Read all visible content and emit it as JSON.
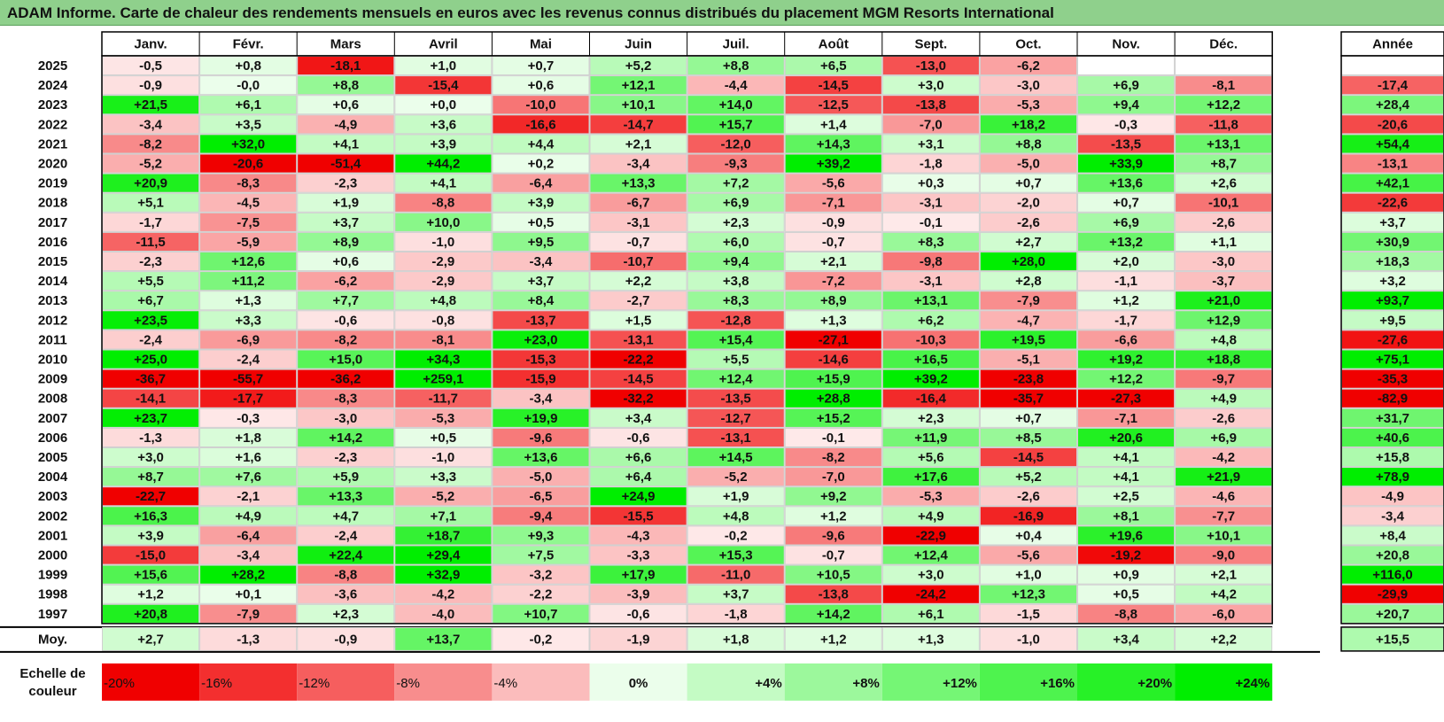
{
  "title": "ADAM Informe. Carte de chaleur des rendements mensuels en euros avec les revenus connus distribués du placement MGM Resorts International",
  "chart_data": {
    "type": "heatmap",
    "title": "ADAM Informe. Carte de chaleur des rendements mensuels en euros avec les revenus connus distribués du placement MGM Resorts International",
    "months": [
      "Janv.",
      "Févr.",
      "Mars",
      "Avril",
      "Mai",
      "Juin",
      "Juil.",
      "Août",
      "Sept.",
      "Oct.",
      "Nov.",
      "Déc."
    ],
    "year_column_label": "Année",
    "average_row_label": "Moy.",
    "rows": [
      {
        "year": "2025",
        "values": [
          "-0,5",
          "+0,8",
          "-18,1",
          "+1,0",
          "+0,7",
          "+5,2",
          "+8,8",
          "+6,5",
          "-13,0",
          "-6,2",
          "",
          ""
        ],
        "annual": ""
      },
      {
        "year": "2024",
        "values": [
          "-0,9",
          "-0,0",
          "+8,8",
          "-15,4",
          "+0,6",
          "+12,1",
          "-4,4",
          "-14,5",
          "+3,0",
          "-3,0",
          "+6,9",
          "-8,1"
        ],
        "annual": "-17,4"
      },
      {
        "year": "2023",
        "values": [
          "+21,5",
          "+6,1",
          "+0,6",
          "+0,0",
          "-10,0",
          "+10,1",
          "+14,0",
          "-12,5",
          "-13,8",
          "-5,3",
          "+9,4",
          "+12,2"
        ],
        "annual": "+28,4"
      },
      {
        "year": "2022",
        "values": [
          "-3,4",
          "+3,5",
          "-4,9",
          "+3,6",
          "-16,6",
          "-14,7",
          "+15,7",
          "+1,4",
          "-7,0",
          "+18,2",
          "-0,3",
          "-11,8"
        ],
        "annual": "-20,6"
      },
      {
        "year": "2021",
        "values": [
          "-8,2",
          "+32,0",
          "+4,1",
          "+3,9",
          "+4,4",
          "+2,1",
          "-12,0",
          "+14,3",
          "+3,1",
          "+8,8",
          "-13,5",
          "+13,1"
        ],
        "annual": "+54,4"
      },
      {
        "year": "2020",
        "values": [
          "-5,2",
          "-20,6",
          "-51,4",
          "+44,2",
          "+0,2",
          "-3,4",
          "-9,3",
          "+39,2",
          "-1,8",
          "-5,0",
          "+33,9",
          "+8,7"
        ],
        "annual": "-13,1"
      },
      {
        "year": "2019",
        "values": [
          "+20,9",
          "-8,3",
          "-2,3",
          "+4,1",
          "-6,4",
          "+13,3",
          "+7,2",
          "-5,6",
          "+0,3",
          "+0,7",
          "+13,6",
          "+2,6"
        ],
        "annual": "+42,1"
      },
      {
        "year": "2018",
        "values": [
          "+5,1",
          "-4,5",
          "+1,9",
          "-8,8",
          "+3,9",
          "-6,7",
          "+6,9",
          "-7,1",
          "-3,1",
          "-2,0",
          "+0,7",
          "-10,1"
        ],
        "annual": "-22,6"
      },
      {
        "year": "2017",
        "values": [
          "-1,7",
          "-7,5",
          "+3,7",
          "+10,0",
          "+0,5",
          "-3,1",
          "+2,3",
          "-0,9",
          "-0,1",
          "-2,6",
          "+6,9",
          "-2,6"
        ],
        "annual": "+3,7"
      },
      {
        "year": "2016",
        "values": [
          "-11,5",
          "-5,9",
          "+8,9",
          "-1,0",
          "+9,5",
          "-0,7",
          "+6,0",
          "-0,7",
          "+8,3",
          "+2,7",
          "+13,2",
          "+1,1"
        ],
        "annual": "+30,9"
      },
      {
        "year": "2015",
        "values": [
          "-2,3",
          "+12,6",
          "+0,6",
          "-2,9",
          "-3,4",
          "-10,7",
          "+9,4",
          "+2,1",
          "-9,8",
          "+28,0",
          "+2,0",
          "-3,0"
        ],
        "annual": "+18,3"
      },
      {
        "year": "2014",
        "values": [
          "+5,5",
          "+11,2",
          "-6,2",
          "-2,9",
          "+3,7",
          "+2,2",
          "+3,8",
          "-7,2",
          "-3,1",
          "+2,8",
          "-1,1",
          "-3,7"
        ],
        "annual": "+3,2"
      },
      {
        "year": "2013",
        "values": [
          "+6,7",
          "+1,3",
          "+7,7",
          "+4,8",
          "+8,4",
          "-2,7",
          "+8,3",
          "+8,9",
          "+13,1",
          "-7,9",
          "+1,2",
          "+21,0"
        ],
        "annual": "+93,7"
      },
      {
        "year": "2012",
        "values": [
          "+23,5",
          "+3,3",
          "-0,6",
          "-0,8",
          "-13,7",
          "+1,5",
          "-12,8",
          "+1,3",
          "+6,2",
          "-4,7",
          "-1,7",
          "+12,9"
        ],
        "annual": "+9,5"
      },
      {
        "year": "2011",
        "values": [
          "-2,4",
          "-6,9",
          "-8,2",
          "-8,1",
          "+23,0",
          "-13,1",
          "+15,4",
          "-27,1",
          "-10,3",
          "+19,5",
          "-6,6",
          "+4,8"
        ],
        "annual": "-27,6"
      },
      {
        "year": "2010",
        "values": [
          "+25,0",
          "-2,4",
          "+15,0",
          "+34,3",
          "-15,3",
          "-22,2",
          "+5,5",
          "-14,6",
          "+16,5",
          "-5,1",
          "+19,2",
          "+18,8"
        ],
        "annual": "+75,1"
      },
      {
        "year": "2009",
        "values": [
          "-36,7",
          "-55,7",
          "-36,2",
          "+259,1",
          "-15,9",
          "-14,5",
          "+12,4",
          "+15,9",
          "+39,2",
          "-23,8",
          "+12,2",
          "-9,7"
        ],
        "annual": "-35,3"
      },
      {
        "year": "2008",
        "values": [
          "-14,1",
          "-17,7",
          "-8,3",
          "-11,7",
          "-3,4",
          "-32,2",
          "-13,5",
          "+28,8",
          "-16,4",
          "-35,7",
          "-27,3",
          "+4,9"
        ],
        "annual": "-82,9"
      },
      {
        "year": "2007",
        "values": [
          "+23,7",
          "-0,3",
          "-3,0",
          "-5,3",
          "+19,9",
          "+3,4",
          "-12,7",
          "+15,2",
          "+2,3",
          "+0,7",
          "-7,1",
          "-2,6"
        ],
        "annual": "+31,7"
      },
      {
        "year": "2006",
        "values": [
          "-1,3",
          "+1,8",
          "+14,2",
          "+0,5",
          "-9,6",
          "-0,6",
          "-13,1",
          "-0,1",
          "+11,9",
          "+8,5",
          "+20,6",
          "+6,9"
        ],
        "annual": "+40,6"
      },
      {
        "year": "2005",
        "values": [
          "+3,0",
          "+1,6",
          "-2,3",
          "-1,0",
          "+13,6",
          "+6,6",
          "+14,5",
          "-8,2",
          "+5,6",
          "-14,5",
          "+4,1",
          "-4,2"
        ],
        "annual": "+15,8"
      },
      {
        "year": "2004",
        "values": [
          "+8,7",
          "+7,6",
          "+5,9",
          "+3,3",
          "-5,0",
          "+6,4",
          "-5,2",
          "-7,0",
          "+17,6",
          "+5,2",
          "+4,1",
          "+21,9"
        ],
        "annual": "+78,9"
      },
      {
        "year": "2003",
        "values": [
          "-22,7",
          "-2,1",
          "+13,3",
          "-5,2",
          "-6,5",
          "+24,9",
          "+1,9",
          "+9,2",
          "-5,3",
          "-2,6",
          "+2,5",
          "-4,6"
        ],
        "annual": "-4,9"
      },
      {
        "year": "2002",
        "values": [
          "+16,3",
          "+4,9",
          "+4,7",
          "+7,1",
          "-9,4",
          "-15,5",
          "+4,8",
          "+1,2",
          "+4,9",
          "-16,9",
          "+8,1",
          "-7,7"
        ],
        "annual": "-3,4"
      },
      {
        "year": "2001",
        "values": [
          "+3,9",
          "-6,4",
          "-2,4",
          "+18,7",
          "+9,3",
          "-4,3",
          "-0,2",
          "-9,6",
          "-22,9",
          "+0,4",
          "+19,6",
          "+10,1"
        ],
        "annual": "+8,4"
      },
      {
        "year": "2000",
        "values": [
          "-15,0",
          "-3,4",
          "+22,4",
          "+29,4",
          "+7,5",
          "-3,3",
          "+15,3",
          "-0,7",
          "+12,4",
          "-5,6",
          "-19,2",
          "-9,0"
        ],
        "annual": "+20,8"
      },
      {
        "year": "1999",
        "values": [
          "+15,6",
          "+28,2",
          "-8,8",
          "+32,9",
          "-3,2",
          "+17,9",
          "-11,0",
          "+10,5",
          "+3,0",
          "+1,0",
          "+0,9",
          "+2,1"
        ],
        "annual": "+116,0"
      },
      {
        "year": "1998",
        "values": [
          "+1,2",
          "+0,1",
          "-3,6",
          "-4,2",
          "-2,2",
          "-3,9",
          "+3,7",
          "-13,8",
          "-24,2",
          "+12,3",
          "+0,5",
          "+4,2"
        ],
        "annual": "-29,9"
      },
      {
        "year": "1997",
        "values": [
          "+20,8",
          "-7,9",
          "+2,3",
          "-4,0",
          "+10,7",
          "-0,6",
          "-1,8",
          "+14,2",
          "+6,1",
          "-1,5",
          "-8,8",
          "-6,0"
        ],
        "annual": "+20,7"
      }
    ],
    "average": {
      "values": [
        "+2,7",
        "-1,3",
        "-0,9",
        "+13,7",
        "-0,2",
        "-1,9",
        "+1,8",
        "+1,2",
        "+1,3",
        "-1,0",
        "+3,4",
        "+2,2"
      ],
      "annual": "+15,5"
    },
    "scale": {
      "label_line1": "Echelle de",
      "label_line2": "couleur",
      "items": [
        {
          "label": "-20%",
          "value": -20
        },
        {
          "label": "-16%",
          "value": -16
        },
        {
          "label": "-12%",
          "value": -12
        },
        {
          "label": "-8%",
          "value": -8
        },
        {
          "label": "-4%",
          "value": -4
        },
        {
          "label": "0%",
          "value": 0
        },
        {
          "label": "+4%",
          "value": 4
        },
        {
          "label": "+8%",
          "value": 8
        },
        {
          "label": "+12%",
          "value": 12
        },
        {
          "label": "+16%",
          "value": 16
        },
        {
          "label": "+20%",
          "value": 20
        },
        {
          "label": "+24%",
          "value": 24
        }
      ]
    },
    "colors": {
      "negative_max": "#f00000",
      "zero": "#ffffff",
      "positive_max": "#00ee00",
      "title_bar": "#8fd08c"
    }
  }
}
